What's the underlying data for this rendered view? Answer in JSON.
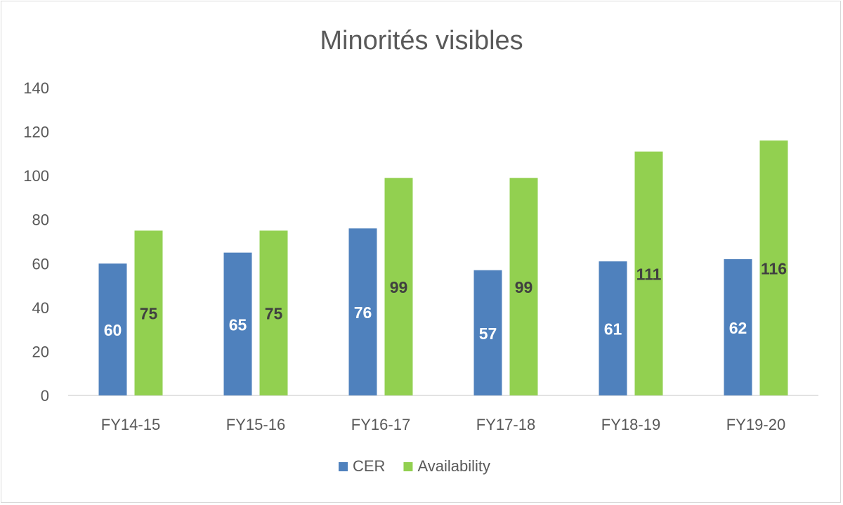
{
  "chart_data": {
    "type": "bar",
    "title": "Minorités visibles",
    "xlabel": "",
    "ylabel": "",
    "categories": [
      "FY14-15",
      "FY15-16",
      "FY16-17",
      "FY17-18",
      "FY18-19",
      "FY19-20"
    ],
    "series": [
      {
        "name": "CER",
        "values": [
          60,
          65,
          76,
          57,
          61,
          62
        ],
        "color": "#4f81bd",
        "label_color": "#ffffff"
      },
      {
        "name": "Availability",
        "values": [
          75,
          75,
          99,
          99,
          111,
          116
        ],
        "color": "#92d050",
        "label_color": "#404040"
      }
    ],
    "ylim": [
      0,
      140
    ],
    "yticks": [
      0,
      20,
      40,
      60,
      80,
      100,
      120,
      140
    ],
    "grid": false,
    "legend_position": "bottom",
    "axis_line_color": "#d9d9d9"
  }
}
